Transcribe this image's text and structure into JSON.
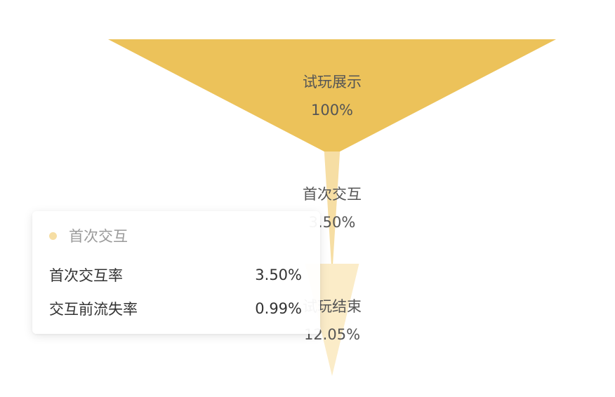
{
  "chart_data": {
    "type": "funnel",
    "title": "",
    "stages": [
      {
        "name": "试玩展示",
        "value_label": "100%",
        "value": 100,
        "color": "#ecc25a"
      },
      {
        "name": "首次交互",
        "value_label": "3.50%",
        "value": 3.5,
        "color": "#f6dea4"
      },
      {
        "name": "试玩结束",
        "value_label": "12.05%",
        "value": 12.05,
        "color": "#fbecc8"
      }
    ]
  },
  "tooltip": {
    "title": "首次交互",
    "dot_color": "#f6dea4",
    "rows": [
      {
        "label": "首次交互率",
        "value": "3.50%"
      },
      {
        "label": "交互前流失率",
        "value": "0.99%"
      }
    ]
  }
}
